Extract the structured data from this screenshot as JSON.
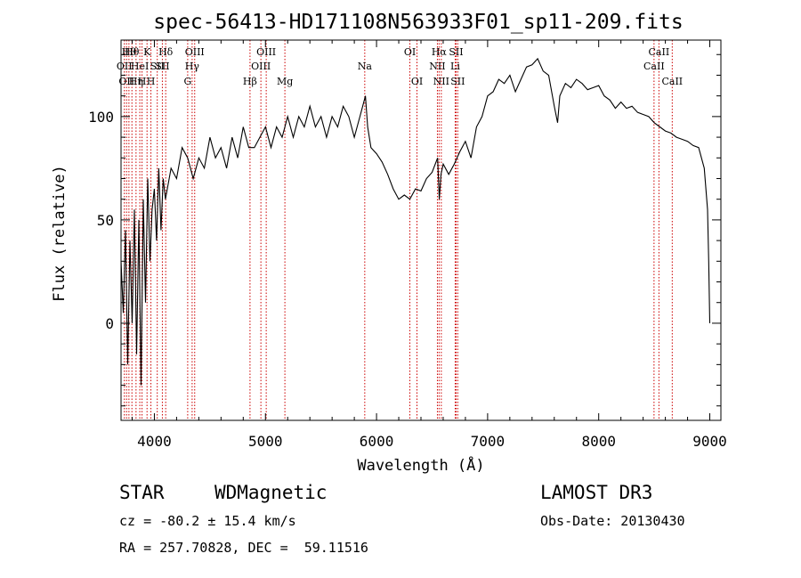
{
  "chart_data": {
    "type": "line",
    "title": "spec-56413-HD171108N563933F01_sp11-209.fits",
    "xlabel": "Wavelength (Å)",
    "ylabel": "Flux (relative)",
    "xlim": [
      3700,
      9100
    ],
    "ylim": [
      -47,
      137
    ],
    "xticks": [
      4000,
      5000,
      6000,
      7000,
      8000,
      9000
    ],
    "yticks": [
      0,
      50,
      100
    ],
    "grid": false,
    "series": [
      {
        "x": [
          3700,
          3720,
          3740,
          3760,
          3780,
          3800,
          3820,
          3840,
          3860,
          3880,
          3900,
          3920,
          3940,
          3960,
          3980,
          4000,
          4020,
          4040,
          4060,
          4080,
          4100,
          4150,
          4200,
          4250,
          4300,
          4350,
          4400,
          4450,
          4500,
          4550,
          4600,
          4650,
          4700,
          4750,
          4800,
          4850,
          4900,
          4950,
          5000,
          5050,
          5100,
          5150,
          5200,
          5250,
          5300,
          5350,
          5400,
          5450,
          5500,
          5550,
          5600,
          5650,
          5700,
          5750,
          5800,
          5850,
          5900,
          5920,
          5950,
          6000,
          6050,
          6100,
          6150,
          6200,
          6250,
          6300,
          6350,
          6400,
          6450,
          6500,
          6550,
          6565,
          6580,
          6600,
          6650,
          6700,
          6750,
          6800,
          6850,
          6900,
          6950,
          7000,
          7050,
          7100,
          7150,
          7200,
          7250,
          7300,
          7350,
          7400,
          7450,
          7500,
          7550,
          7600,
          7630,
          7650,
          7700,
          7750,
          7800,
          7850,
          7900,
          7950,
          8000,
          8050,
          8100,
          8150,
          8200,
          8250,
          8300,
          8350,
          8400,
          8450,
          8500,
          8550,
          8600,
          8650,
          8700,
          8750,
          8800,
          8850,
          8900,
          8950,
          8980,
          8990,
          9000
        ],
        "y": [
          30,
          5,
          45,
          -20,
          40,
          0,
          55,
          -15,
          50,
          -30,
          60,
          10,
          70,
          30,
          55,
          65,
          40,
          75,
          45,
          70,
          60,
          75,
          70,
          85,
          80,
          70,
          80,
          75,
          90,
          80,
          85,
          75,
          90,
          80,
          95,
          85,
          85,
          90,
          95,
          85,
          95,
          90,
          100,
          90,
          100,
          95,
          105,
          95,
          100,
          90,
          100,
          95,
          105,
          100,
          90,
          100,
          110,
          95,
          85,
          82,
          78,
          72,
          65,
          60,
          62,
          60,
          65,
          64,
          70,
          73,
          80,
          60,
          72,
          77,
          72,
          77,
          83,
          88,
          80,
          95,
          100,
          110,
          112,
          118,
          116,
          120,
          112,
          118,
          124,
          125,
          128,
          122,
          120,
          105,
          97,
          110,
          116,
          114,
          118,
          116,
          113,
          114,
          115,
          110,
          108,
          104,
          107,
          104,
          105,
          102,
          101,
          100,
          97,
          95,
          93,
          92,
          90,
          89,
          88,
          86,
          85,
          75,
          55,
          30,
          0
        ],
        "color": "#000000"
      }
    ],
    "spectral_lines": [
      {
        "x": 3730,
        "label": "OII",
        "row": 1
      },
      {
        "x": 3750,
        "label": "OII",
        "row": 2
      },
      {
        "x": 3771,
        "label": "Hθ",
        "row": 0
      },
      {
        "x": 3798,
        "label": "Hθ",
        "row": 0
      },
      {
        "x": 3835,
        "label": "Hη",
        "row": 2
      },
      {
        "x": 3869,
        "label": "HeI",
        "row": 1
      },
      {
        "x": 3889,
        "label": "H",
        "row": 2
      },
      {
        "x": 3934,
        "label": "K",
        "row": 0
      },
      {
        "x": 3969,
        "label": "H",
        "row": 2
      },
      {
        "x": 4026,
        "label": "SII",
        "row": 1
      },
      {
        "x": 4072,
        "label": "SII",
        "row": 1
      },
      {
        "x": 4102,
        "label": "Hδ",
        "row": 0
      },
      {
        "x": 4300,
        "label": "G",
        "row": 2
      },
      {
        "x": 4340,
        "label": "Hγ",
        "row": 1
      },
      {
        "x": 4363,
        "label": "OIII",
        "row": 0
      },
      {
        "x": 4861,
        "label": "Hβ",
        "row": 2
      },
      {
        "x": 4959,
        "label": "OIII",
        "row": 1
      },
      {
        "x": 5007,
        "label": "OIII",
        "row": 0
      },
      {
        "x": 5175,
        "label": "Mg",
        "row": 2
      },
      {
        "x": 5894,
        "label": "Na",
        "row": 1
      },
      {
        "x": 6300,
        "label": "OI",
        "row": 0
      },
      {
        "x": 6364,
        "label": "OI",
        "row": 2
      },
      {
        "x": 6548,
        "label": "NII",
        "row": 1
      },
      {
        "x": 6563,
        "label": "Hα",
        "row": 0
      },
      {
        "x": 6583,
        "label": "NII",
        "row": 2
      },
      {
        "x": 6708,
        "label": "Li",
        "row": 1
      },
      {
        "x": 6716,
        "label": "SII",
        "row": 0
      },
      {
        "x": 6731,
        "label": "SII",
        "row": 2
      },
      {
        "x": 8498,
        "label": "CaII",
        "row": 1
      },
      {
        "x": 8542,
        "label": "CaII",
        "row": 0
      },
      {
        "x": 8662,
        "label": "CaII",
        "row": 2
      }
    ],
    "line_color": "#cc0000"
  },
  "info": {
    "class": "STAR",
    "subclass": "WDMagnetic",
    "survey": "LAMOST DR3",
    "cz": "cz = -80.2 ± 15.4 km/s",
    "obs_date": "Obs-Date: 20130430",
    "radec": "RA = 257.70828, DEC =  59.11516"
  }
}
